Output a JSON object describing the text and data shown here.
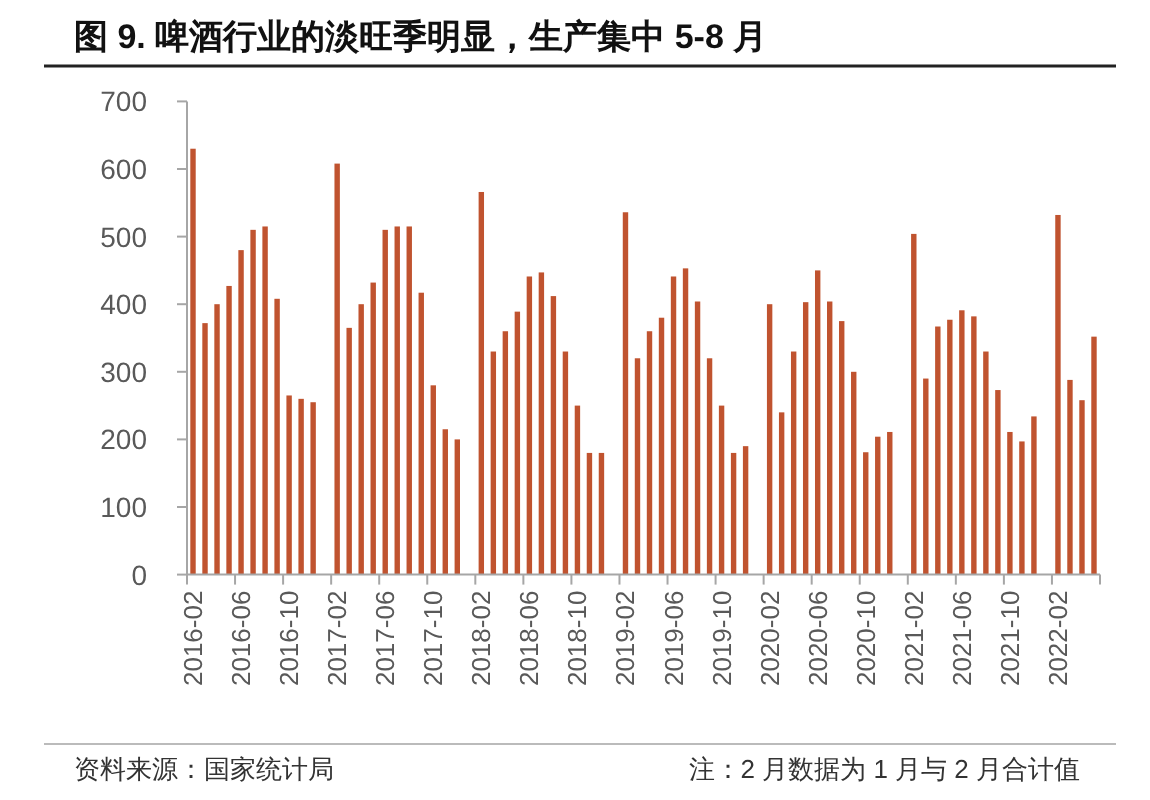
{
  "chart_data": {
    "type": "bar",
    "title": "图 9. 啤酒行业的淡旺季明显，生产集中 5-8 月",
    "categories": [
      "2016-02",
      null,
      null,
      null,
      "2016-06",
      null,
      null,
      null,
      "2016-10",
      null,
      null,
      null,
      "2017-02",
      null,
      null,
      null,
      "2017-06",
      null,
      null,
      null,
      "2017-10",
      null,
      null,
      null,
      "2018-02",
      null,
      null,
      null,
      "2018-06",
      null,
      null,
      null,
      "2018-10",
      null,
      null,
      null,
      "2019-02",
      null,
      null,
      null,
      "2019-06",
      null,
      null,
      null,
      "2019-10",
      null,
      null,
      null,
      "2020-02",
      null,
      null,
      null,
      "2020-06",
      null,
      null,
      null,
      "2020-10",
      null,
      null,
      null,
      "2021-02",
      null,
      null,
      null,
      "2021-06",
      null,
      null,
      null,
      "2021-10",
      null,
      null,
      null,
      "2022-02",
      null,
      null,
      null
    ],
    "values": [
      630,
      372,
      400,
      427,
      480,
      510,
      515,
      408,
      265,
      260,
      255,
      null,
      608,
      365,
      400,
      432,
      510,
      515,
      515,
      417,
      280,
      215,
      200,
      null,
      566,
      330,
      360,
      389,
      441,
      447,
      412,
      330,
      250,
      180,
      180,
      null,
      536,
      320,
      360,
      380,
      441,
      453,
      404,
      320,
      250,
      180,
      190,
      null,
      400,
      240,
      330,
      403,
      450,
      404,
      375,
      300,
      181,
      204,
      211,
      null,
      504,
      290,
      367,
      377,
      391,
      382,
      330,
      273,
      211,
      197,
      234,
      null,
      532,
      288,
      258,
      352
    ],
    "color": "#c0532f",
    "ylim": [
      0,
      700
    ],
    "yticks": [
      0,
      100,
      200,
      300,
      400,
      500,
      600,
      700
    ],
    "annotations": [
      "资料来源：国家统计局",
      "注：2 月数据为 1 月与 2 月合计值"
    ]
  }
}
